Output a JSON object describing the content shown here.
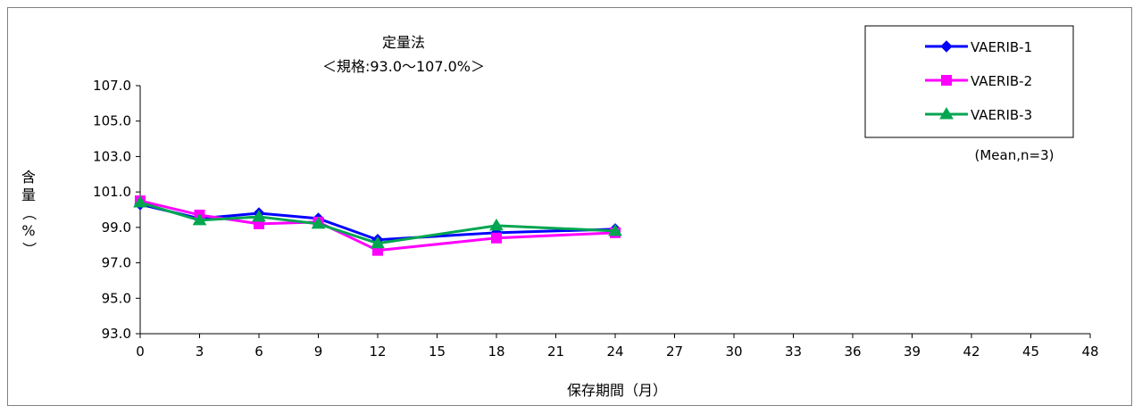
{
  "chart_data": {
    "type": "line",
    "title": "定量法",
    "subtitle": "＜規格:93.0〜107.0%＞",
    "xlabel": "保存期間（月）",
    "ylabel": "含量（%）",
    "note": "(Mean,n=3)",
    "xlim": [
      0,
      48
    ],
    "ylim": [
      93.0,
      107.0
    ],
    "x_ticks": [
      "0",
      "3",
      "6",
      "9",
      "12",
      "15",
      "18",
      "21",
      "24",
      "27",
      "30",
      "33",
      "36",
      "39",
      "42",
      "45",
      "48"
    ],
    "y_ticks": [
      "107.0",
      "105.0",
      "103.0",
      "101.0",
      "99.0",
      "97.0",
      "95.0",
      "93.0"
    ],
    "grid": false,
    "legend_position": "top-right",
    "series": [
      {
        "name": "VAERIB-1",
        "color": "#0000ff",
        "marker": "diamond",
        "x": [
          0,
          3,
          6,
          9,
          12,
          18,
          24
        ],
        "y": [
          100.3,
          99.5,
          99.8,
          99.5,
          98.3,
          98.7,
          98.9
        ]
      },
      {
        "name": "VAERIB-2",
        "color": "#ff00ff",
        "marker": "square",
        "x": [
          0,
          3,
          6,
          9,
          12,
          18,
          24
        ],
        "y": [
          100.5,
          99.7,
          99.2,
          99.3,
          97.7,
          98.4,
          98.7
        ]
      },
      {
        "name": "VAERIB-3",
        "color": "#00a650",
        "marker": "triangle",
        "x": [
          0,
          3,
          6,
          9,
          12,
          18,
          24
        ],
        "y": [
          100.4,
          99.4,
          99.6,
          99.2,
          98.1,
          99.1,
          98.8
        ]
      }
    ]
  }
}
